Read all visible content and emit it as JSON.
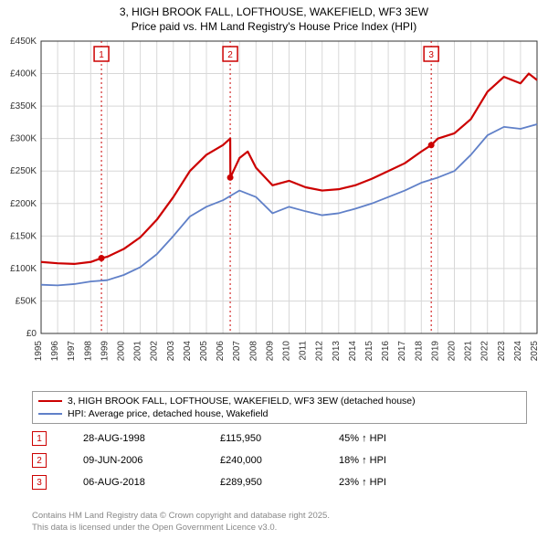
{
  "title_line1": "3, HIGH BROOK FALL, LOFTHOUSE, WAKEFIELD, WF3 3EW",
  "title_line2": "Price paid vs. HM Land Registry's House Price Index (HPI)",
  "chart": {
    "type": "line",
    "background_color": "#ffffff",
    "grid_color": "#d8d8d8",
    "axis_color": "#333333",
    "xlim": [
      1995,
      2025
    ],
    "ylim": [
      0,
      450000
    ],
    "ytick_step": 50000,
    "ytick_labels": [
      "£0",
      "£50K",
      "£100K",
      "£150K",
      "£200K",
      "£250K",
      "£300K",
      "£350K",
      "£400K",
      "£450K"
    ],
    "xticks": [
      1995,
      1996,
      1997,
      1998,
      1999,
      2000,
      2001,
      2002,
      2003,
      2004,
      2005,
      2006,
      2007,
      2008,
      2009,
      2010,
      2011,
      2012,
      2013,
      2014,
      2015,
      2016,
      2017,
      2018,
      2019,
      2020,
      2021,
      2022,
      2023,
      2024,
      2025
    ],
    "tick_fontsize": 10,
    "series_red": {
      "color": "#cc0000",
      "width": 2.2,
      "data": [
        [
          1995,
          110000
        ],
        [
          1996,
          108000
        ],
        [
          1997,
          107000
        ],
        [
          1998,
          110000
        ],
        [
          1998.65,
          115950
        ],
        [
          1999,
          118000
        ],
        [
          2000,
          130000
        ],
        [
          2001,
          148000
        ],
        [
          2002,
          175000
        ],
        [
          2003,
          210000
        ],
        [
          2004,
          250000
        ],
        [
          2005,
          275000
        ],
        [
          2006,
          290000
        ],
        [
          2006.44,
          300000
        ],
        [
          2006.45,
          240000
        ],
        [
          2007,
          270000
        ],
        [
          2007.5,
          280000
        ],
        [
          2008,
          255000
        ],
        [
          2009,
          228000
        ],
        [
          2010,
          235000
        ],
        [
          2011,
          225000
        ],
        [
          2012,
          220000
        ],
        [
          2013,
          222000
        ],
        [
          2014,
          228000
        ],
        [
          2015,
          238000
        ],
        [
          2016,
          250000
        ],
        [
          2017,
          262000
        ],
        [
          2018,
          280000
        ],
        [
          2018.6,
          289950
        ],
        [
          2019,
          300000
        ],
        [
          2020,
          308000
        ],
        [
          2021,
          330000
        ],
        [
          2022,
          372000
        ],
        [
          2023,
          395000
        ],
        [
          2024,
          385000
        ],
        [
          2024.5,
          400000
        ],
        [
          2025,
          390000
        ]
      ]
    },
    "series_blue": {
      "color": "#6080c8",
      "width": 1.8,
      "data": [
        [
          1995,
          75000
        ],
        [
          1996,
          74000
        ],
        [
          1997,
          76000
        ],
        [
          1998,
          80000
        ],
        [
          1999,
          82000
        ],
        [
          2000,
          90000
        ],
        [
          2001,
          102000
        ],
        [
          2002,
          122000
        ],
        [
          2003,
          150000
        ],
        [
          2004,
          180000
        ],
        [
          2005,
          195000
        ],
        [
          2006,
          205000
        ],
        [
          2007,
          220000
        ],
        [
          2008,
          210000
        ],
        [
          2009,
          185000
        ],
        [
          2010,
          195000
        ],
        [
          2011,
          188000
        ],
        [
          2012,
          182000
        ],
        [
          2013,
          185000
        ],
        [
          2014,
          192000
        ],
        [
          2015,
          200000
        ],
        [
          2016,
          210000
        ],
        [
          2017,
          220000
        ],
        [
          2018,
          232000
        ],
        [
          2019,
          240000
        ],
        [
          2020,
          250000
        ],
        [
          2021,
          275000
        ],
        [
          2022,
          305000
        ],
        [
          2023,
          318000
        ],
        [
          2024,
          315000
        ],
        [
          2025,
          322000
        ]
      ]
    },
    "markers": [
      {
        "n": "1",
        "x": 1998.65,
        "y": 115950
      },
      {
        "n": "2",
        "x": 2006.44,
        "y": 240000
      },
      {
        "n": "3",
        "x": 2018.6,
        "y": 289950
      }
    ],
    "marker_line_color": "#cc0000",
    "marker_box_border": "#cc0000",
    "marker_box_bg": "#ffffff"
  },
  "legend": {
    "series1_label": "3, HIGH BROOK FALL, LOFTHOUSE, WAKEFIELD, WF3 3EW (detached house)",
    "series1_color": "#cc0000",
    "series2_label": "HPI: Average price, detached house, Wakefield",
    "series2_color": "#6080c8"
  },
  "sales": [
    {
      "n": "1",
      "date": "28-AUG-1998",
      "price": "£115,950",
      "hpi": "45% ↑ HPI"
    },
    {
      "n": "2",
      "date": "09-JUN-2006",
      "price": "£240,000",
      "hpi": "18% ↑ HPI"
    },
    {
      "n": "3",
      "date": "06-AUG-2018",
      "price": "£289,950",
      "hpi": "23% ↑ HPI"
    }
  ],
  "footer_line1": "Contains HM Land Registry data © Crown copyright and database right 2025.",
  "footer_line2": "This data is licensed under the Open Government Licence v3.0."
}
